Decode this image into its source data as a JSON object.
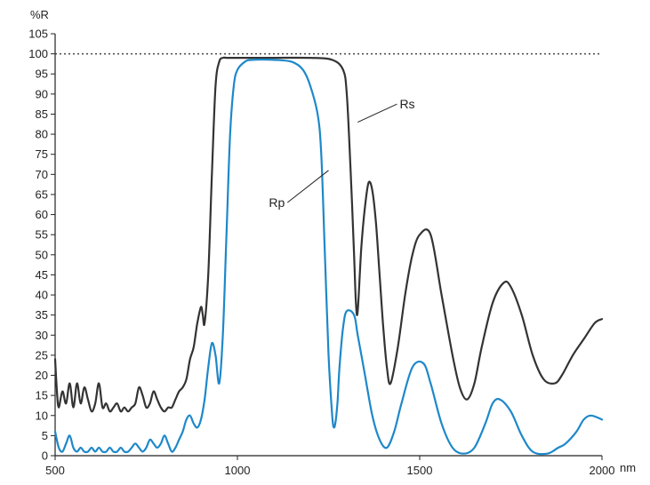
{
  "chart_data": {
    "type": "line",
    "title": "",
    "xlabel": "nm",
    "ylabel": "%R",
    "xlim": [
      500,
      2000
    ],
    "ylim": [
      0,
      105
    ],
    "xticks": [
      500,
      1000,
      1500,
      2000
    ],
    "yticks": [
      0,
      5,
      10,
      15,
      20,
      25,
      30,
      35,
      40,
      45,
      50,
      55,
      60,
      65,
      70,
      75,
      80,
      85,
      90,
      95,
      100,
      105
    ],
    "grid": false,
    "legend": "none",
    "reference_line": {
      "y": 100,
      "style": "dotted"
    },
    "series": [
      {
        "name": "Rs",
        "color": "#333333",
        "x": [
          500,
          505,
          510,
          520,
          530,
          540,
          550,
          560,
          570,
          580,
          590,
          600,
          610,
          620,
          630,
          640,
          650,
          660,
          670,
          680,
          690,
          700,
          710,
          720,
          730,
          740,
          750,
          760,
          770,
          780,
          790,
          800,
          810,
          820,
          830,
          840,
          850,
          860,
          870,
          880,
          890,
          900,
          905,
          910,
          920,
          930,
          940,
          950,
          960,
          970,
          1000,
          1100,
          1200,
          1260,
          1290,
          1300,
          1310,
          1320,
          1325,
          1330,
          1340,
          1350,
          1360,
          1370,
          1380,
          1390,
          1400,
          1410,
          1420,
          1440,
          1460,
          1480,
          1500,
          1530,
          1560,
          1590,
          1610,
          1630,
          1650,
          1670,
          1700,
          1730,
          1750,
          1780,
          1810,
          1840,
          1870,
          1890,
          1920,
          1950,
          1980,
          2000
        ],
        "y": [
          24,
          16,
          12,
          16,
          13,
          18,
          12,
          18,
          13,
          17,
          14,
          11,
          13,
          18,
          12,
          13,
          11,
          12,
          13,
          11,
          12,
          11,
          12,
          13,
          17,
          15,
          12,
          13,
          16,
          14,
          12,
          11,
          12,
          12,
          14,
          16,
          17,
          19,
          24,
          27,
          33,
          37,
          35,
          33,
          45,
          70,
          92,
          98,
          99,
          99,
          99,
          99,
          99,
          98.5,
          96,
          90,
          72,
          50,
          38,
          36,
          52,
          62,
          68,
          66,
          58,
          45,
          32,
          22,
          18,
          27,
          40,
          50,
          55,
          55,
          40,
          25,
          17,
          14,
          18,
          27,
          38,
          43,
          42,
          35,
          25,
          19,
          18,
          20,
          25,
          29,
          33,
          34
        ]
      },
      {
        "name": "Rp",
        "color": "#1e88c9",
        "x": [
          500,
          510,
          520,
          530,
          540,
          550,
          560,
          570,
          580,
          590,
          600,
          610,
          620,
          630,
          640,
          650,
          660,
          670,
          680,
          690,
          700,
          710,
          720,
          730,
          740,
          750,
          760,
          770,
          780,
          790,
          800,
          810,
          820,
          830,
          840,
          850,
          860,
          870,
          880,
          890,
          900,
          910,
          920,
          930,
          940,
          950,
          960,
          970,
          980,
          990,
          1000,
          1020,
          1040,
          1100,
          1150,
          1180,
          1200,
          1220,
          1230,
          1240,
          1250,
          1260,
          1265,
          1270,
          1275,
          1280,
          1290,
          1300,
          1320,
          1330,
          1350,
          1370,
          1390,
          1410,
          1430,
          1450,
          1480,
          1510,
          1530,
          1560,
          1590,
          1620,
          1650,
          1680,
          1700,
          1720,
          1750,
          1780,
          1810,
          1850,
          1880,
          1900,
          1930,
          1950,
          1970,
          2000
        ],
        "y": [
          6,
          2,
          1,
          3,
          5,
          2,
          1,
          2,
          1,
          1,
          2,
          1,
          2,
          1,
          1,
          2,
          1,
          1,
          2,
          1,
          1,
          2,
          3,
          2,
          1,
          2,
          4,
          3,
          2,
          3,
          5,
          3,
          1,
          2,
          4,
          6,
          9,
          10,
          8,
          7,
          9,
          14,
          22,
          28,
          25,
          18,
          30,
          55,
          80,
          92,
          96,
          98,
          98.5,
          98.5,
          98,
          96,
          92,
          85,
          75,
          50,
          25,
          10,
          7,
          9,
          14,
          22,
          32,
          36,
          35,
          30,
          20,
          10,
          4,
          2,
          6,
          13,
          22,
          23,
          18,
          8,
          2,
          0.5,
          2,
          8,
          13,
          14,
          11,
          5,
          1,
          0.5,
          2,
          3,
          6,
          9,
          10,
          9
        ]
      }
    ],
    "annotations": [
      {
        "text": "Rs",
        "series": "Rs",
        "x": 1330,
        "y": 83,
        "label_x": 1445,
        "label_y": 87.5
      },
      {
        "text": "Rp",
        "series": "Rp",
        "x": 1250,
        "y": 71,
        "label_x": 1130,
        "label_y": 63
      }
    ]
  }
}
